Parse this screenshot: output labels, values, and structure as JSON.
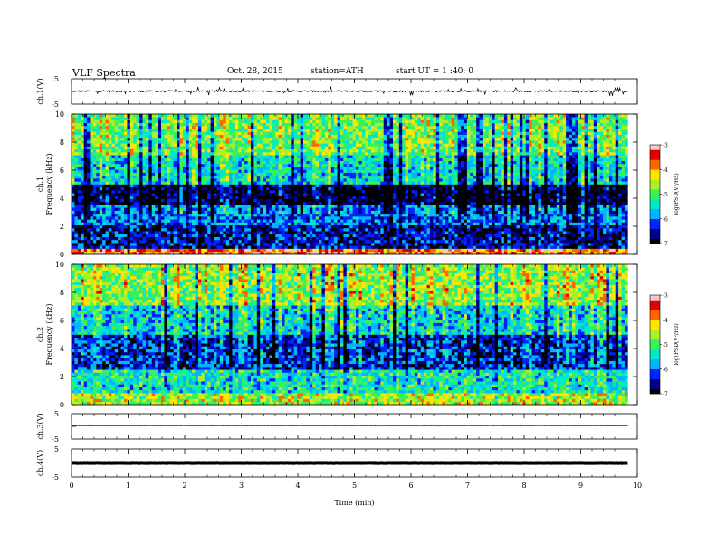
{
  "header": {
    "title": "VLF Spectra",
    "date": "Oct. 28, 2015",
    "station": "station=ATH",
    "start": "start  UT =   1 :40: 0"
  },
  "chart_data": [
    {
      "type": "line",
      "panel": "ch1-waveform",
      "ylabel": "ch.1(V)",
      "ylim": [
        -5,
        5
      ],
      "yticks": [
        "5",
        "-5"
      ],
      "xlim": [
        0,
        10
      ],
      "series": [
        {
          "baseline": 0.1,
          "noise_amplitude": 0.35,
          "spike_amplitude": 1.8
        }
      ]
    },
    {
      "type": "heatmap",
      "panel": "ch1-spectrogram",
      "ylabel": "Frequency (kHz)",
      "channel_label": "ch.1",
      "ylim": [
        0,
        10
      ],
      "yticks": [
        "0",
        "2",
        "4",
        "6",
        "8",
        "10"
      ],
      "xlim": [
        0,
        10
      ],
      "data_xmax": 9.83,
      "colorbar": {
        "label": "log(PSD(V²/Hz)",
        "range": [
          -7,
          -3
        ],
        "ticks": [
          "-3",
          "-4",
          "-5",
          "-6",
          "-7"
        ]
      },
      "band_log_psd": [
        {
          "freq_khz": [
            0.0,
            0.5
          ],
          "value": -3.6
        },
        {
          "freq_khz": [
            0.5,
            2.0
          ],
          "value": -6.5
        },
        {
          "freq_khz": [
            2.0,
            3.5
          ],
          "value": -6.0
        },
        {
          "freq_khz": [
            3.5,
            5.0
          ],
          "value": -6.9
        },
        {
          "freq_khz": [
            5.0,
            7.0
          ],
          "value": -5.5
        },
        {
          "freq_khz": [
            7.0,
            10.0
          ],
          "value": -4.9
        }
      ]
    },
    {
      "type": "heatmap",
      "panel": "ch2-spectrogram",
      "ylabel": "Frequency (kHz)",
      "channel_label": "ch.2",
      "ylim": [
        0,
        10
      ],
      "yticks": [
        "0",
        "2",
        "4",
        "6",
        "8",
        "10"
      ],
      "xlim": [
        0,
        10
      ],
      "data_xmax": 9.83,
      "colorbar": {
        "label": "log(PSD(V²/Hz)",
        "range": [
          -7,
          -3
        ],
        "ticks": [
          "-3",
          "-4",
          "-5",
          "-6",
          "-7"
        ]
      },
      "band_log_psd": [
        {
          "freq_khz": [
            0.0,
            0.8
          ],
          "value": -4.6
        },
        {
          "freq_khz": [
            0.8,
            2.5
          ],
          "value": -5.4
        },
        {
          "freq_khz": [
            2.5,
            5.0
          ],
          "value": -6.4
        },
        {
          "freq_khz": [
            5.0,
            7.0
          ],
          "value": -5.6
        },
        {
          "freq_khz": [
            7.0,
            10.0
          ],
          "value": -4.8
        }
      ]
    },
    {
      "type": "line",
      "panel": "ch3-waveform",
      "ylabel": "ch.3(V)",
      "ylim": [
        -5,
        5
      ],
      "yticks": [
        "5",
        "-5"
      ],
      "xlim": [
        0,
        10
      ],
      "series": [
        {
          "baseline": 0.2,
          "noise_amplitude": 0.12,
          "spike_amplitude": 0
        }
      ]
    },
    {
      "type": "line",
      "panel": "ch4-waveform",
      "ylabel": "ch.4(V)",
      "ylim": [
        -5,
        5
      ],
      "yticks": [
        "5",
        "-5"
      ],
      "xlim": [
        0,
        10
      ],
      "xlabel": "Time  (min)",
      "xticks": [
        "0",
        "1",
        "2",
        "3",
        "4",
        "5",
        "6",
        "7",
        "8",
        "9",
        "10"
      ],
      "series": [
        {
          "baseline": 0.0,
          "noise_amplitude": 0.05,
          "spike_amplitude": 0
        }
      ]
    }
  ],
  "colors": {
    "colormap": [
      "#000000",
      "#000088",
      "#0022ff",
      "#00b4ff",
      "#00e8c8",
      "#3cf05a",
      "#aaf028",
      "#ffe600",
      "#ff6400",
      "#e00000",
      "#f5c8c8"
    ]
  }
}
